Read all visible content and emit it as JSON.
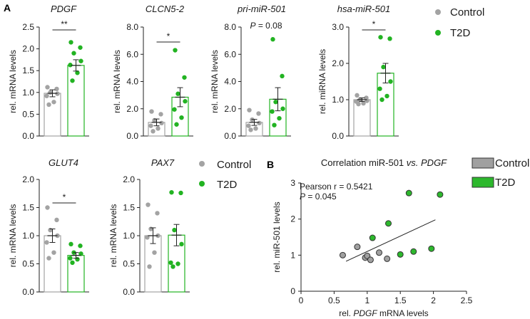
{
  "figure": {
    "panel_a_label": "A",
    "panel_b_label": "B",
    "legend_a_control": "Control",
    "legend_a_t2d": "T2D",
    "legend_a2_control": "Control",
    "legend_a2_t2d": "T2D",
    "legend_b_control": "Control",
    "legend_b_t2d": "T2D",
    "colors": {
      "control": "#a3a3a3",
      "t2d": "#22b322",
      "scatter_control": "#a0a0a0",
      "scatter_t2d": "#2db82d"
    }
  },
  "chart_data": [
    {
      "type": "bar",
      "title": "PDGF",
      "ylabel": "rel. mRNA levels",
      "categories": [
        "Control",
        "T2D"
      ],
      "ylim": [
        0,
        2.5
      ],
      "yticks": [
        "0.0",
        "0.5",
        "1.0",
        "1.5",
        "2.0",
        "2.5"
      ],
      "ytick_values": [
        0,
        0.5,
        1,
        1.5,
        2,
        2.5
      ],
      "values": [
        0.98,
        1.62
      ],
      "sem": [
        0.08,
        0.13
      ],
      "points": [
        [
          1.12,
          1.08,
          1.0,
          0.97,
          0.92,
          0.78,
          0.72
        ],
        [
          2.15,
          2.03,
          1.9,
          1.72,
          1.63,
          1.45,
          1.27
        ]
      ],
      "annotation": "**"
    },
    {
      "type": "bar",
      "title": "CLCN5-2",
      "ylabel": "rel. mRNA levels",
      "categories": [
        "Control",
        "T2D"
      ],
      "ylim": [
        0,
        8
      ],
      "yticks": [
        "0.0",
        "2.0",
        "4.0",
        "6.0",
        "8.0"
      ],
      "ytick_values": [
        0,
        2,
        4,
        6,
        8
      ],
      "values": [
        1.0,
        2.85
      ],
      "sem": [
        0.25,
        0.7
      ],
      "points": [
        [
          1.8,
          1.6,
          1.15,
          0.95,
          0.75,
          0.55,
          0.35
        ],
        [
          6.3,
          4.3,
          3.1,
          2.55,
          1.95,
          1.35,
          0.85
        ]
      ],
      "annotation": "*"
    },
    {
      "type": "bar",
      "title": "pri-miR-501",
      "ylabel": "rel. mRNA levels",
      "categories": [
        "Control",
        "T2D"
      ],
      "ylim": [
        0,
        8
      ],
      "yticks": [
        "0.0",
        "2.0",
        "4.0",
        "6.0",
        "8.0"
      ],
      "ytick_values": [
        0,
        2,
        4,
        6,
        8
      ],
      "values": [
        1.0,
        2.7
      ],
      "sem": [
        0.22,
        0.85
      ],
      "points": [
        [
          1.9,
          1.65,
          1.2,
          0.95,
          0.75,
          0.55,
          0.45
        ],
        [
          7.1,
          4.4,
          2.5,
          2.0,
          1.8,
          1.3,
          0.8
        ]
      ],
      "annotation": "P = 0.08"
    },
    {
      "type": "bar",
      "title": "hsa-miR-501",
      "ylabel": "rel. miRNA levels",
      "categories": [
        "Control",
        "T2D"
      ],
      "ylim": [
        0,
        3
      ],
      "yticks": [
        "0.0",
        "1.0",
        "2.0",
        "3.0"
      ],
      "ytick_values": [
        0,
        1,
        2,
        3
      ],
      "values": [
        1.0,
        1.73
      ],
      "sem": [
        0.05,
        0.27
      ],
      "points": [
        [
          1.12,
          1.05,
          1.0,
          0.97,
          0.95,
          0.9,
          0.88
        ],
        [
          2.72,
          2.68,
          1.9,
          1.5,
          1.3,
          1.1,
          1.0
        ]
      ],
      "annotation": "*"
    },
    {
      "type": "bar",
      "title": "GLUT4",
      "ylabel": "rel. mRNA levels",
      "categories": [
        "Control",
        "T2D"
      ],
      "ylim": [
        0,
        2
      ],
      "yticks": [
        "0.0",
        "0.5",
        "1.0",
        "1.5",
        "2.0"
      ],
      "ytick_values": [
        0,
        0.5,
        1,
        1.5,
        2
      ],
      "values": [
        1.0,
        0.65
      ],
      "sem": [
        0.12,
        0.05
      ],
      "points": [
        [
          1.5,
          1.28,
          1.1,
          1.0,
          0.88,
          0.7,
          0.6
        ],
        [
          0.85,
          0.82,
          0.7,
          0.68,
          0.6,
          0.58,
          0.52
        ]
      ],
      "annotation": "*"
    },
    {
      "type": "bar",
      "title": "PAX7",
      "ylabel": "rel. mRNA levels",
      "categories": [
        "Control",
        "T2D"
      ],
      "ylim": [
        0,
        2
      ],
      "yticks": [
        "0.0",
        "0.5",
        "1.0",
        "1.5",
        "2.0"
      ],
      "ytick_values": [
        0,
        0.5,
        1,
        1.5,
        2
      ],
      "values": [
        1.0,
        1.01
      ],
      "sem": [
        0.14,
        0.19
      ],
      "points": [
        [
          1.55,
          1.4,
          1.12,
          1.0,
          0.97,
          0.7,
          0.45
        ],
        [
          1.77,
          1.76,
          1.1,
          0.85,
          0.52,
          0.5,
          0.45
        ]
      ],
      "annotation": ""
    },
    {
      "type": "scatter",
      "title_prefix": "Correlation miR-501 ",
      "title_vs": "vs.",
      "title_gene": "PDGF",
      "xlabel_prefix": "rel. ",
      "xlabel_gene": "PDGF",
      "xlabel_suffix": " mRNA levels",
      "ylabel": "rel. miR-501 levels",
      "xlim": [
        0,
        2.5
      ],
      "ylim": [
        0,
        3
      ],
      "xticks": [
        "0",
        "0.5",
        "1",
        "1.5",
        "2",
        "2.5"
      ],
      "xtick_values": [
        0,
        0.5,
        1,
        1.5,
        2,
        2.5
      ],
      "yticks": [
        "0",
        "1",
        "2",
        "3"
      ],
      "ytick_values": [
        0,
        1,
        2,
        3
      ],
      "stat_r": "Pearson r = 0.5421",
      "stat_p_label": "P",
      "stat_p_value": " = 0.045",
      "series": [
        {
          "name": "Control",
          "x": [
            0.63,
            0.85,
            0.97,
            1.0,
            1.05,
            1.18,
            1.3
          ],
          "y": [
            1.0,
            1.23,
            0.93,
            0.98,
            0.87,
            1.07,
            0.9
          ]
        },
        {
          "name": "T2D",
          "x": [
            1.08,
            1.32,
            1.5,
            1.63,
            1.7,
            1.97,
            2.1
          ],
          "y": [
            1.48,
            1.88,
            1.02,
            2.72,
            1.1,
            1.18,
            2.68
          ]
        }
      ],
      "fit": {
        "x": [
          0.68,
          2.03
        ],
        "y": [
          0.83,
          1.98
        ]
      }
    }
  ]
}
